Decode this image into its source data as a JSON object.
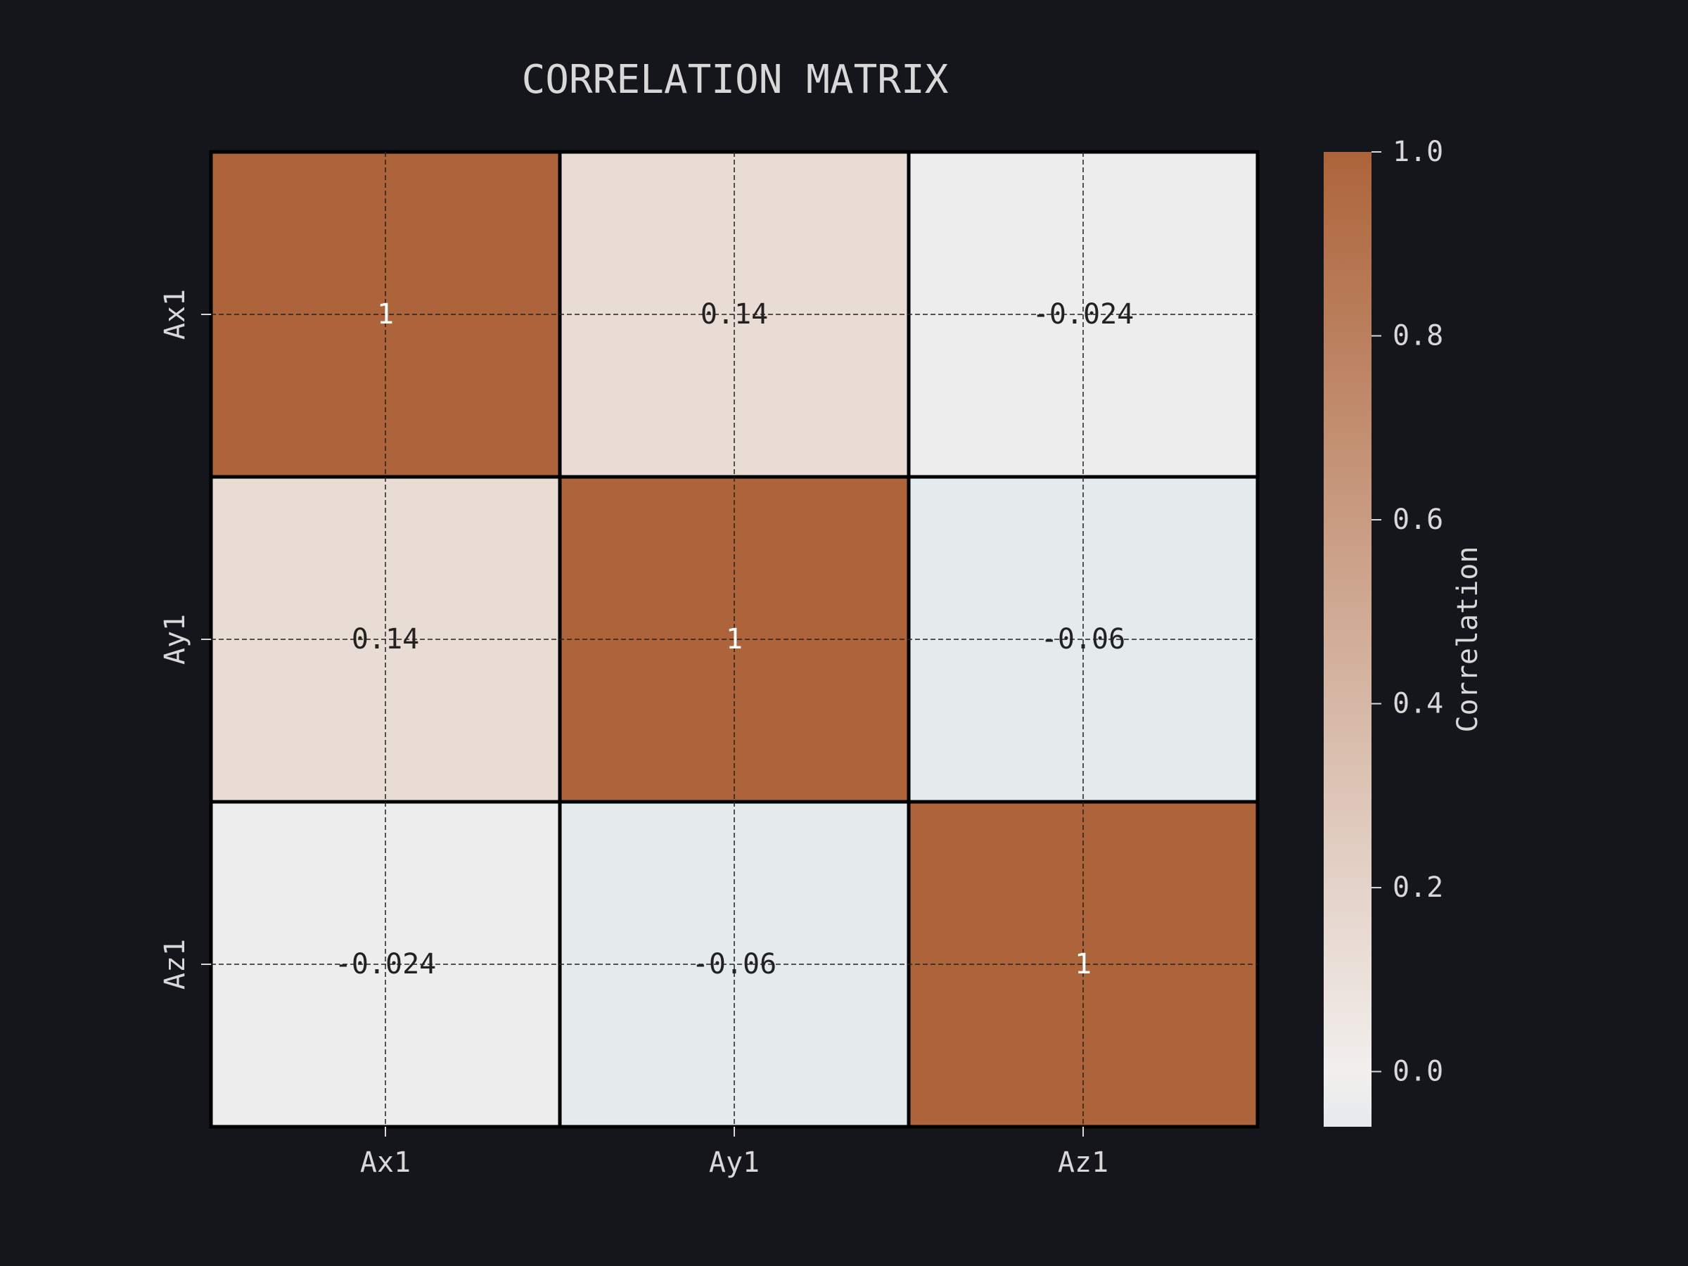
{
  "chart_data": {
    "type": "heatmap",
    "title": "CORRELATION MATRIX",
    "x_categories": [
      "Ax1",
      "Ay1",
      "Az1"
    ],
    "y_categories": [
      "Ax1",
      "Ay1",
      "Az1"
    ],
    "values": [
      [
        1,
        0.14,
        -0.024
      ],
      [
        0.14,
        1,
        -0.06
      ],
      [
        -0.024,
        -0.06,
        1
      ]
    ],
    "cell_labels": [
      [
        "1",
        "0.14",
        "-0.024"
      ],
      [
        "0.14",
        "1",
        "-0.06"
      ],
      [
        "-0.024",
        "-0.06",
        "1"
      ]
    ],
    "colorbar": {
      "label": "Correlation",
      "range": [
        -0.06,
        1.0
      ],
      "ticks": [
        0.0,
        0.2,
        0.4,
        0.6,
        0.8,
        1.0
      ],
      "tick_labels": [
        "0.0",
        "0.2",
        "0.4",
        "0.6",
        "0.8",
        "1.0"
      ],
      "colors": {
        "low": "#e5eaed",
        "mid": "#f2efed",
        "high": "#ad643a"
      }
    },
    "grid": true,
    "background": "#15161b"
  }
}
